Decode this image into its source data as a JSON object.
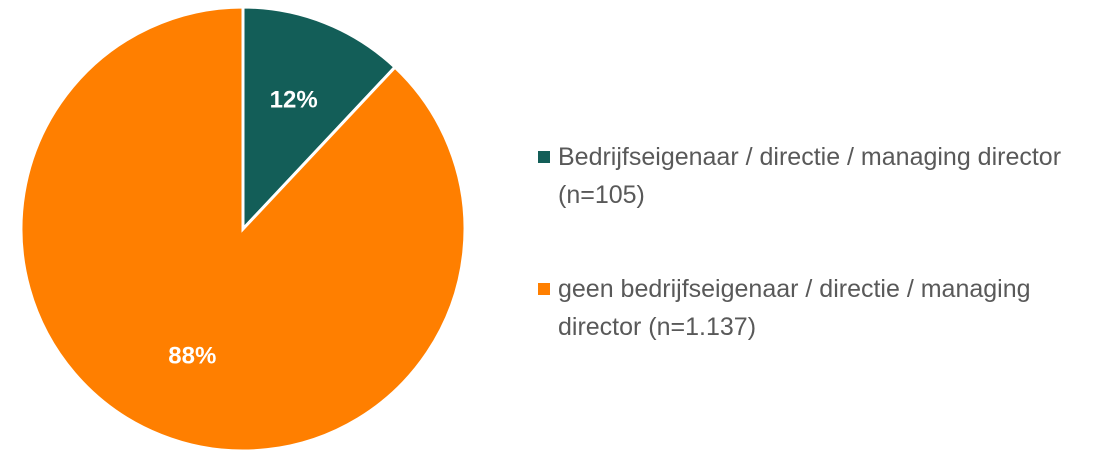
{
  "chart_data": {
    "type": "pie",
    "categories": [
      "Bedrijfseigenaar / directie / managing director (n=105)",
      "geen bedrijfseigenaar / directie / managing director (n=1.137)"
    ],
    "values": [
      12,
      88
    ],
    "value_labels": [
      "12%",
      "88%"
    ],
    "colors": [
      "#135e58",
      "#ff7f00"
    ],
    "legend": "right"
  }
}
